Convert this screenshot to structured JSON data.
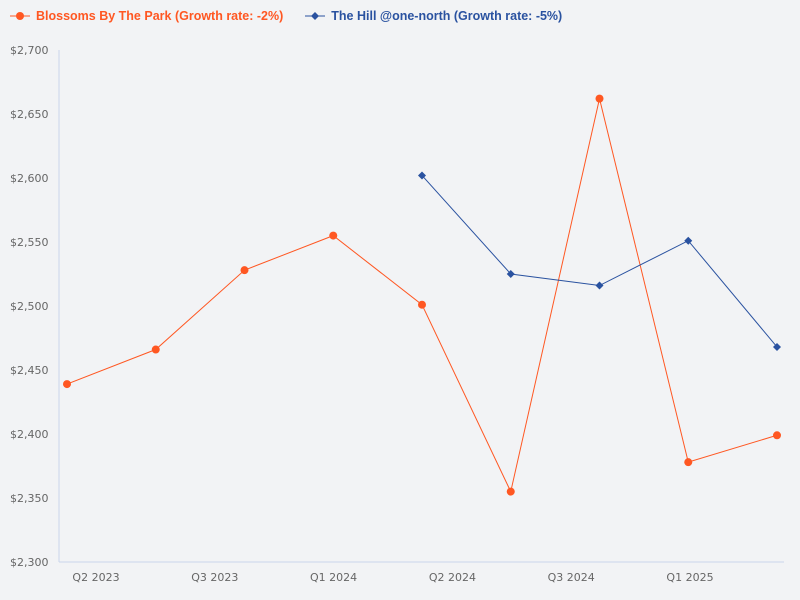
{
  "chart_data": {
    "type": "line",
    "title": "",
    "xlabel": "",
    "ylabel": "",
    "ylim": [
      2300,
      2700
    ],
    "yticks": [
      "$2,300",
      "$2,350",
      "$2,400",
      "$2,450",
      "$2,500",
      "$2,550",
      "$2,600",
      "$2,650",
      "$2,700"
    ],
    "ytick_values": [
      2300,
      2350,
      2400,
      2450,
      2500,
      2550,
      2600,
      2650,
      2700
    ],
    "xtick_labels": [
      "Q2 2023",
      "Q3 2023",
      "Q1 2024",
      "Q2 2024",
      "Q3 2024",
      "Q1 2025"
    ],
    "legend_position": "top-left",
    "grid": false,
    "series": [
      {
        "name": "Blossoms By The Park (Growth rate: -2%)",
        "color": "#ff5722",
        "marker": "circle",
        "values": [
          2439,
          2466,
          2528,
          2555,
          2501,
          2355,
          2662,
          2378,
          2399
        ]
      },
      {
        "name": "The Hill @one-north (Growth rate: -5%)",
        "color": "#2a52a0",
        "marker": "diamond",
        "values": [
          null,
          null,
          null,
          null,
          2602,
          2525,
          2516,
          2551,
          2468
        ]
      }
    ]
  }
}
